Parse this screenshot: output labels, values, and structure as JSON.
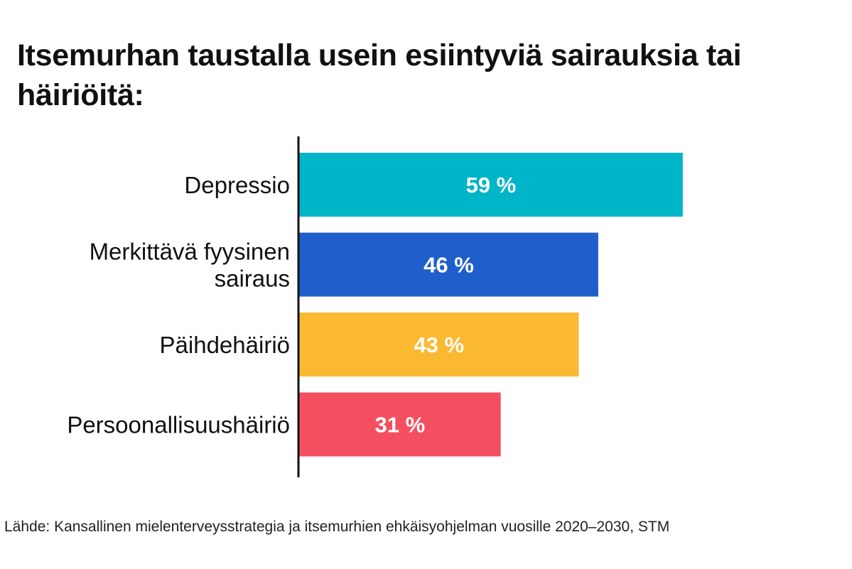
{
  "title": "Itsemurhan taustalla usein esiintyviä sairauksia tai häiriöitä:",
  "source": "Lähde: Kansallinen mielenterveysstrategia ja itsemurhien ehkäisyohjelman vuosille 2020–2030, STM",
  "chart_data": {
    "type": "bar",
    "orientation": "horizontal",
    "categories": [
      [
        "Depressio"
      ],
      [
        "Merkittävä fyysinen",
        "sairaus"
      ],
      [
        "Päihdehäiriö"
      ],
      [
        "Persoonallisuushäiriö"
      ]
    ],
    "values": [
      59,
      46,
      43,
      31
    ],
    "value_labels": [
      "59 %",
      "46 %",
      "43 %",
      "31 %"
    ],
    "colors": [
      "#00b5c8",
      "#1f5fcc",
      "#fbb931",
      "#f44f60"
    ],
    "label_color": "#ffffff",
    "xlim": [
      0,
      100
    ],
    "grid": false,
    "legend": "none"
  }
}
